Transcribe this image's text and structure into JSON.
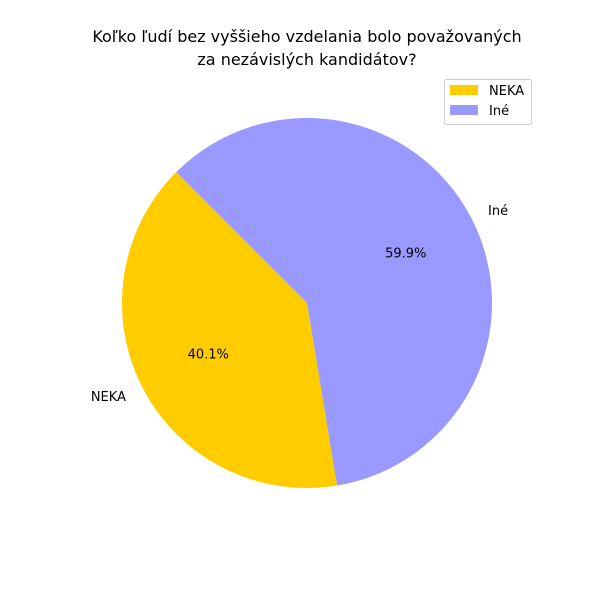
{
  "chart_data": {
    "type": "pie",
    "title_lines": [
      "Koľko ľudí bez vyššieho vzdelania bolo považovaných",
      "za nezávislých kandidátov?"
    ],
    "slices": [
      {
        "name": "NEKA",
        "value": 40.1,
        "label": "NEKA",
        "pct_label": "40.1%",
        "color": "#ffcc00"
      },
      {
        "name": "Iné",
        "value": 59.9,
        "label": "Iné",
        "pct_label": "59.9%",
        "color": "#9999ff"
      }
    ],
    "legend": {
      "position": "top-right",
      "entries": [
        "NEKA",
        "Iné"
      ]
    }
  }
}
